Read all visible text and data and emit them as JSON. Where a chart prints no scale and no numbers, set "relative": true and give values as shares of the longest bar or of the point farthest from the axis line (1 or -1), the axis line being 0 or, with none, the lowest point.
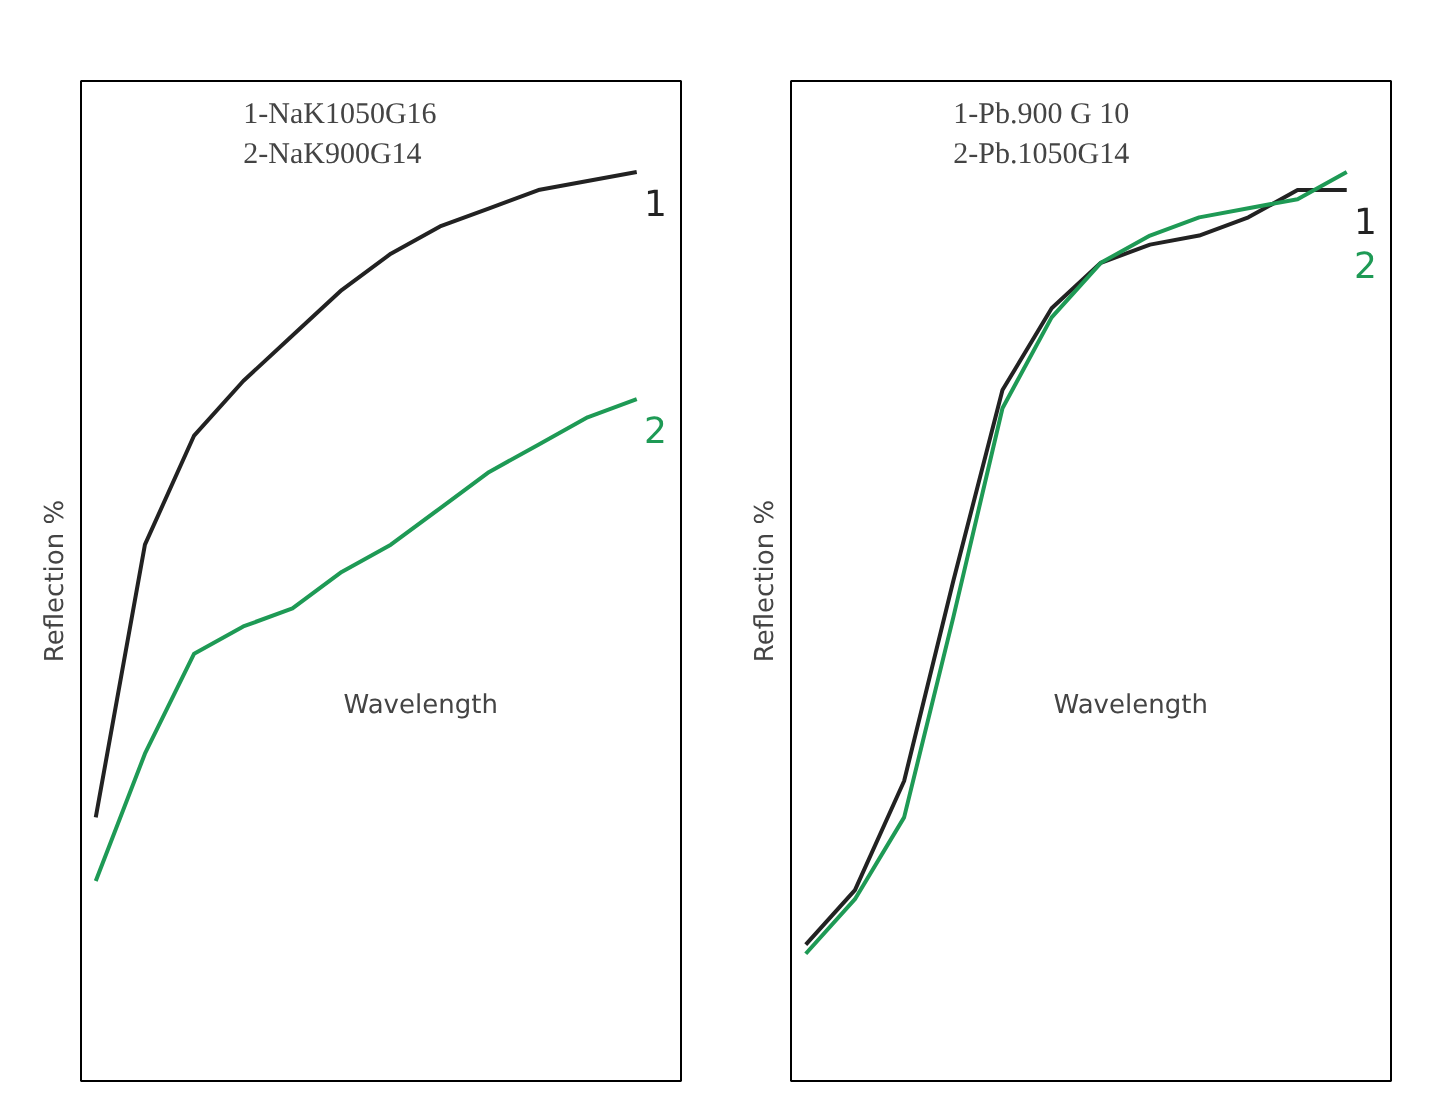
{
  "chart_data": [
    {
      "type": "line",
      "relative": true,
      "ylabel": "Reflection %",
      "xlabel": "Wavelength",
      "annotations": [
        "1-NaK1050G16",
        "2-NaK900G14"
      ],
      "categories": [
        null,
        null,
        null,
        null,
        null,
        null,
        null,
        null,
        null,
        null,
        null,
        null
      ],
      "series": [
        {
          "name": "1",
          "color": "#222222",
          "values": [
            0.29,
            0.59,
            0.71,
            0.77,
            0.82,
            0.87,
            0.91,
            0.94,
            0.96,
            0.98,
            0.99,
            1
          ]
        },
        {
          "name": "2",
          "color": "#1e9a55",
          "values": [
            0.22,
            0.36,
            0.47,
            0.5,
            0.52,
            0.56,
            0.59,
            0.63,
            0.67,
            0.7,
            0.73,
            0.75
          ]
        }
      ]
    },
    {
      "type": "line",
      "relative": true,
      "ylabel": "Reflection %",
      "xlabel": "Wavelength",
      "annotations": [
        "1-Pb.900 G 10",
        "2-Pb.1050G14"
      ],
      "categories": [
        null,
        null,
        null,
        null,
        null,
        null,
        null,
        null,
        null,
        null,
        null,
        null
      ],
      "series": [
        {
          "name": "1",
          "color": "#222222",
          "values": [
            0.15,
            0.21,
            0.33,
            0.55,
            0.76,
            0.85,
            0.9,
            0.92,
            0.93,
            0.95,
            0.98,
            0.98
          ]
        },
        {
          "name": "2",
          "color": "#1e9a55",
          "values": [
            0.14,
            0.2,
            0.29,
            0.51,
            0.74,
            0.84,
            0.9,
            0.93,
            0.95,
            0.96,
            0.97,
            1
          ]
        }
      ]
    }
  ]
}
